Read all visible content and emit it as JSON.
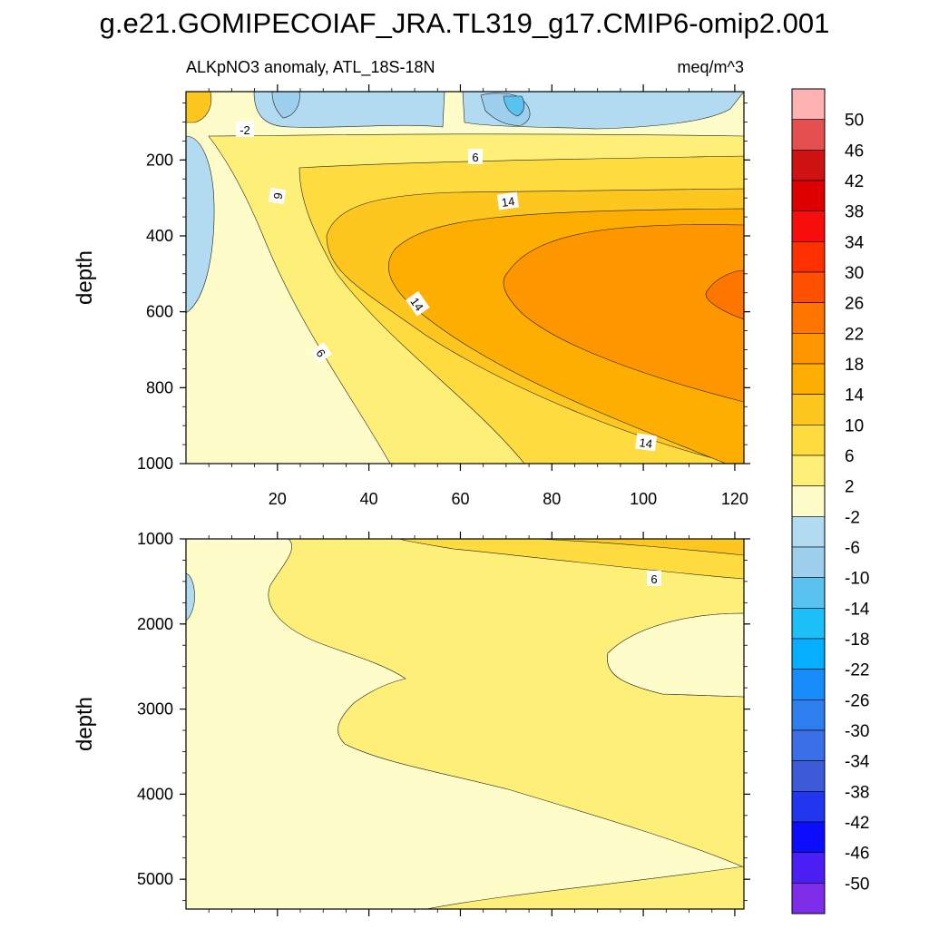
{
  "chart_data": {
    "type": "contour",
    "title": "g.e21.GOMIPECOIAF_JRA.TL319_g17.CMIP6-omip2.001",
    "subtitle_left": "ALKpNO3 anomaly, ATL_18S-18N",
    "subtitle_right": "meq/m^3",
    "colorbar": {
      "labels": [
        "50",
        "46",
        "42",
        "38",
        "34",
        "30",
        "26",
        "22",
        "18",
        "14",
        "10",
        "6",
        "2",
        "-2",
        "-6",
        "-10",
        "-14",
        "-18",
        "-22",
        "-26",
        "-30",
        "-34",
        "-38",
        "-42",
        "-46",
        "-50"
      ],
      "colors": [
        "#feb2b2",
        "#e64f4f",
        "#cf1212",
        "#de0000",
        "#f80d0d",
        "#fe3000",
        "#fe5000",
        "#fe7600",
        "#fe9600",
        "#fdae00",
        "#fdc720",
        "#fedc40",
        "#fdef78",
        "#fefcc8",
        "#b2dbf2",
        "#9ed0ee",
        "#59c2ee",
        "#1cbff8",
        "#05aefe",
        "#178cfa",
        "#2e7ef0",
        "#3a6fe8",
        "#3d5ad8",
        "#2136ee",
        "#0d0dfe",
        "#4a1ef5",
        "#7e2ee8"
      ]
    },
    "panels": [
      {
        "name": "upper",
        "xlabel": "",
        "ylabel": "depth",
        "xlim": [
          0,
          122
        ],
        "ylim": [
          1000,
          20
        ],
        "xticks": [
          "20",
          "40",
          "60",
          "80",
          "100",
          "120"
        ],
        "yticks": [
          "200",
          "400",
          "600",
          "800",
          "1000"
        ],
        "contour_labels": [
          "-2",
          "6",
          "9",
          "14",
          "14",
          "6",
          "14"
        ]
      },
      {
        "name": "lower",
        "xlabel": "",
        "ylabel": "depth",
        "xlim": [
          0,
          122
        ],
        "ylim": [
          5350,
          1000
        ],
        "xticks": [],
        "yticks": [
          "1000",
          "2000",
          "3000",
          "4000",
          "5000"
        ],
        "contour_labels": [
          "6"
        ]
      }
    ]
  }
}
